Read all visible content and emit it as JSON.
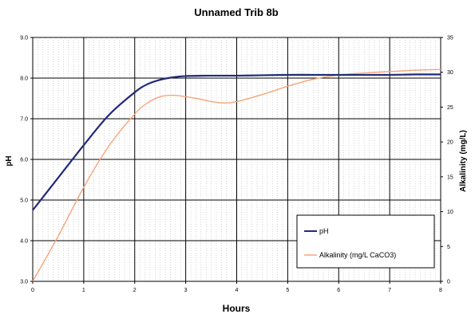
{
  "chart_data": {
    "type": "line",
    "title": "Unnamed Trib 8b",
    "xlabel": "Hours",
    "ylabel": "pH",
    "y2label": "Alkalinity (mg/L)",
    "xlim": [
      0,
      8
    ],
    "ylim": [
      3.0,
      9.0
    ],
    "y2lim": [
      0,
      35
    ],
    "x_ticks": [
      "0",
      "1",
      "2",
      "3",
      "4",
      "5",
      "6",
      "7",
      "8"
    ],
    "y_ticks": [
      "3.0",
      "4.0",
      "5.0",
      "6.0",
      "7.0",
      "8.0",
      "9.0"
    ],
    "y2_ticks": [
      "0",
      "5",
      "10",
      "15",
      "20",
      "25",
      "30",
      "35"
    ],
    "grid": true,
    "legend_position": "bottom-right",
    "series": [
      {
        "name": "pH",
        "axis": "left",
        "color": "#1f2a78",
        "x": [
          0,
          0.5,
          1,
          1.5,
          2,
          2.25,
          2.5,
          2.75,
          3,
          3.5,
          4,
          4.5,
          5,
          5.5,
          6,
          6.5,
          7,
          7.5,
          8
        ],
        "y": [
          4.75,
          5.55,
          6.35,
          7.1,
          7.65,
          7.85,
          7.96,
          8.02,
          8.05,
          8.06,
          8.06,
          8.07,
          8.08,
          8.08,
          8.08,
          8.08,
          8.08,
          8.09,
          8.09
        ]
      },
      {
        "name": "Alkalinity (mg/L CaCO3)",
        "axis": "right",
        "color": "#f4a57a",
        "x": [
          0,
          0.5,
          1,
          1.5,
          2,
          2.25,
          2.5,
          2.75,
          3,
          3.25,
          3.5,
          3.75,
          4,
          4.5,
          5,
          5.5,
          6,
          6.5,
          7,
          7.5,
          8
        ],
        "y": [
          0,
          6.5,
          13.5,
          19.5,
          24,
          25.6,
          26.5,
          26.7,
          26.5,
          26.2,
          25.8,
          25.6,
          25.8,
          26.8,
          28.0,
          29.0,
          29.6,
          29.9,
          30.1,
          30.3,
          30.4
        ]
      }
    ]
  }
}
